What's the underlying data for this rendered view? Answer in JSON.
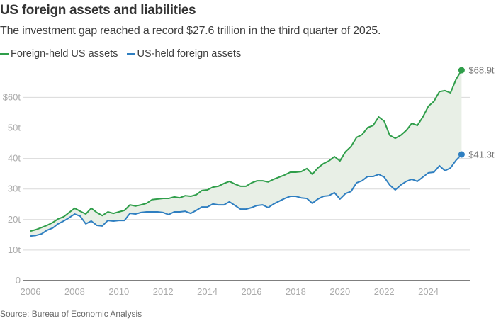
{
  "chart_data": {
    "type": "area",
    "title": "US foreign assets and liabilities",
    "subtitle": "The investment gap reached a record $27.6 trillion in the third quarter of 2025.",
    "xlabel": "",
    "ylabel": "",
    "x_start": 2006.0,
    "x_step": 0.25,
    "xlim": [
      2006,
      2025.5
    ],
    "ylim": [
      0,
      60
    ],
    "x_ticks": [
      {
        "value": 2006,
        "label": "2006"
      },
      {
        "value": 2008,
        "label": "2008"
      },
      {
        "value": 2010,
        "label": "2010"
      },
      {
        "value": 2012,
        "label": "2012"
      },
      {
        "value": 2014,
        "label": "2014"
      },
      {
        "value": 2016,
        "label": "2016"
      },
      {
        "value": 2018,
        "label": "2018"
      },
      {
        "value": 2020,
        "label": "2020"
      },
      {
        "value": 2022,
        "label": "2022"
      },
      {
        "value": 2024,
        "label": "2024"
      }
    ],
    "y_ticks": [
      {
        "value": 0,
        "label": "0"
      },
      {
        "value": 10,
        "label": "10t"
      },
      {
        "value": 20,
        "label": "20t"
      },
      {
        "value": 30,
        "label": "30t"
      },
      {
        "value": 40,
        "label": "40t"
      },
      {
        "value": 50,
        "label": "50t"
      },
      {
        "value": 60,
        "label": "$60t"
      }
    ],
    "grid": true,
    "legend_position": "top-left",
    "series": [
      {
        "name": "Foreign-held US assets",
        "color": "#2f9e4a",
        "end_label": "$68.9t",
        "values": [
          16.2,
          16.7,
          17.4,
          18.1,
          19.0,
          20.2,
          20.9,
          22.3,
          23.7,
          22.7,
          21.8,
          23.7,
          22.3,
          21.3,
          22.5,
          22.0,
          22.5,
          23.0,
          24.8,
          24.4,
          24.8,
          25.3,
          26.5,
          26.7,
          26.9,
          26.9,
          27.4,
          27.1,
          27.8,
          27.6,
          28.1,
          29.5,
          29.7,
          30.6,
          30.9,
          31.8,
          32.5,
          31.6,
          30.9,
          30.9,
          32.0,
          32.7,
          32.7,
          32.3,
          33.2,
          33.9,
          34.6,
          35.5,
          35.5,
          35.7,
          36.7,
          34.8,
          36.9,
          38.3,
          39.2,
          40.6,
          39.2,
          42.2,
          43.9,
          46.9,
          47.8,
          50.1,
          50.8,
          53.6,
          52.2,
          47.6,
          46.6,
          47.6,
          49.2,
          51.5,
          50.8,
          53.6,
          57.1,
          58.7,
          61.9,
          62.2,
          61.5,
          65.9,
          68.9
        ]
      },
      {
        "name": "US-held foreign assets",
        "color": "#2f7fc1",
        "end_label": "$41.3t",
        "values": [
          14.6,
          14.8,
          15.3,
          16.5,
          17.2,
          18.6,
          19.5,
          20.6,
          21.8,
          21.1,
          18.6,
          19.5,
          18.1,
          17.9,
          19.7,
          19.5,
          19.7,
          19.7,
          22.0,
          21.8,
          22.3,
          22.5,
          22.5,
          22.5,
          22.3,
          21.6,
          22.5,
          22.5,
          22.7,
          22.0,
          23.0,
          24.1,
          24.1,
          25.1,
          24.8,
          24.8,
          25.8,
          24.6,
          23.4,
          23.4,
          23.9,
          24.6,
          24.8,
          23.9,
          25.1,
          26.0,
          26.9,
          27.6,
          27.6,
          27.1,
          26.9,
          25.3,
          26.7,
          27.6,
          27.8,
          28.8,
          26.7,
          28.5,
          29.2,
          32.0,
          32.7,
          34.1,
          34.1,
          34.8,
          33.9,
          31.3,
          29.7,
          31.3,
          32.5,
          33.2,
          32.5,
          33.9,
          35.3,
          35.5,
          37.6,
          36.0,
          36.9,
          39.4,
          41.3
        ]
      }
    ],
    "fill_between": {
      "color": "#e8efe6",
      "description": "Shaded gap between series"
    },
    "source": "Source: Bureau of Economic Analysis"
  }
}
